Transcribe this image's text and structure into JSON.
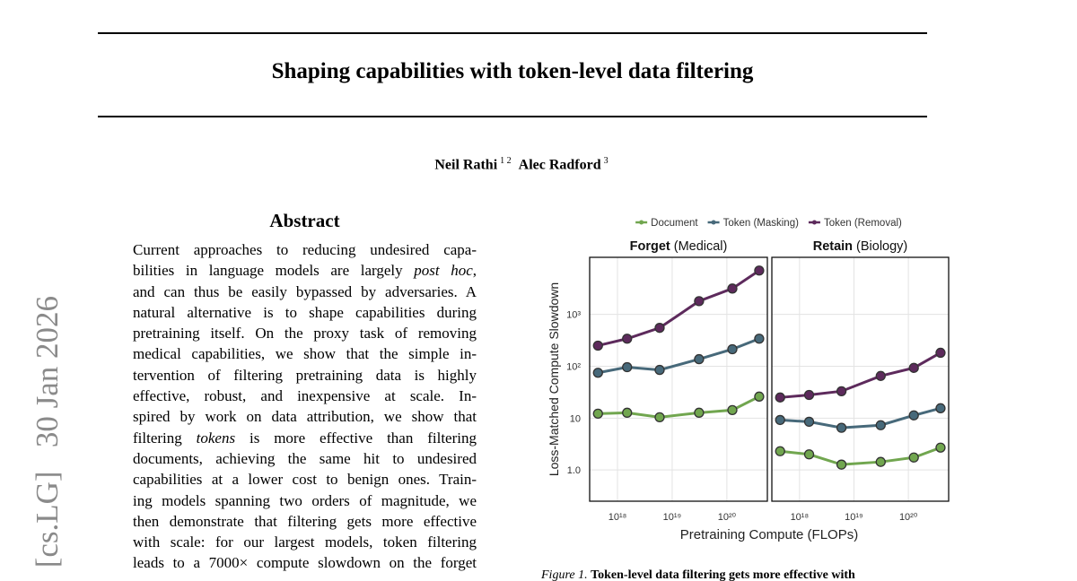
{
  "header": {
    "title": "Shaping capabilities with token-level data filtering",
    "authors": [
      {
        "name": "Neil Rathi",
        "affiliations": "1 2"
      },
      {
        "name": "Alec Radford",
        "affiliations": "3"
      }
    ]
  },
  "sidebar": "[cs.LG]   30 Jan 2026",
  "abstract": {
    "heading": "Abstract",
    "lines": [
      [
        "Current approaches to reducing undesired capa-"
      ],
      [
        "bilities in language models are largely ",
        {
          "text": "post hoc",
          "style": "italic"
        },
        ","
      ],
      [
        "and can thus be easily bypassed by adversaries. A"
      ],
      [
        "natural alternative is to shape capabilities during"
      ],
      [
        "pretraining itself. On the proxy task of removing"
      ],
      [
        "medical capabilities, we show that the simple in-"
      ],
      [
        "tervention of filtering pretraining data is highly"
      ],
      [
        "effective, robust, and inexpensive at scale. In-"
      ],
      [
        "spired by work on data attribution, we show that"
      ],
      [
        "filtering ",
        {
          "text": "tokens",
          "style": "italic"
        },
        " is more effective than filtering"
      ],
      [
        "documents, achieving the same hit to undesired"
      ],
      [
        "capabilities at a lower cost to benign ones. Train-"
      ],
      [
        "ing models spanning two orders of magnitude, we"
      ],
      [
        "then demonstrate that filtering gets more effective"
      ],
      [
        "with scale: for our largest models, token filtering"
      ],
      [
        "leads to a 7000× compute slowdown on the forget"
      ]
    ]
  },
  "figure": {
    "label": "Figure 1.",
    "caption": "Token-level data filtering gets more effective with"
  },
  "chart_data": {
    "type": "line",
    "y_label": "Loss-Matched Compute Slowdown",
    "x_label": "Pretraining Compute (FLOPs)",
    "xscale": "log",
    "yscale": "log",
    "grid": true,
    "legend": "top",
    "series": [
      {
        "name": "Document",
        "color": "#71a64f"
      },
      {
        "name": "Token (Masking)",
        "color": "#47697a"
      },
      {
        "name": "Token (Removal)",
        "color": "#5d2a5c"
      }
    ],
    "x": [
      4.4e+17,
      1.5e+18,
      5.9e+18,
      3.1e+19,
      1.26e+20,
      3.9e+20
    ],
    "xlim": [
      3.1e+17,
      5.5e+20
    ],
    "xticks": [
      {
        "value": 1e+18,
        "label": "10¹⁸"
      },
      {
        "value": 1e+19,
        "label": "10¹⁹"
      },
      {
        "value": 1e+20,
        "label": "10²⁰"
      }
    ],
    "ylim": [
      0.25,
      12600
    ],
    "yticks": [
      {
        "value": 1,
        "label": "1.0"
      },
      10,
      {
        "value": 100,
        "label": "10²"
      },
      {
        "value": 1000,
        "label": "10³"
      }
    ],
    "panels": [
      {
        "title": "Forget",
        "subtitle": "(Medical)",
        "series": [
          {
            "values": [
              12.2,
              12.7,
              10.4,
              12.7,
              14.3,
              26
            ]
          },
          {
            "values": [
              75,
              96,
              85,
              137,
              213,
              340
            ]
          },
          {
            "values": [
              250,
              340,
              550,
              1800,
              3150,
              7000
            ]
          }
        ]
      },
      {
        "title": "Retain",
        "subtitle": "(Biology)",
        "series": [
          {
            "values": [
              2.3,
              2.0,
              1.27,
              1.43,
              1.74,
              2.7
            ]
          },
          {
            "values": [
              9.2,
              8.5,
              6.5,
              7.3,
              11.3,
              15.5
            ]
          },
          {
            "values": [
              25,
              28,
              33,
              65,
              93,
              182
            ]
          }
        ]
      }
    ]
  }
}
